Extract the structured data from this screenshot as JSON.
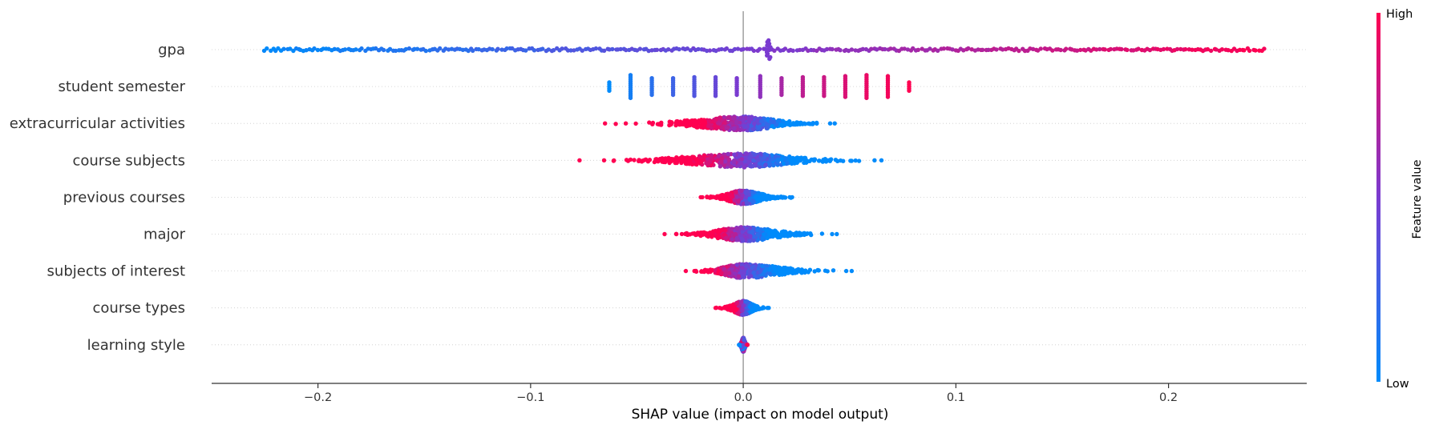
{
  "chart_data": {
    "type": "scatter",
    "subtype": "shap-beeswarm-summary",
    "features": [
      "gpa",
      "student semester",
      "extracurricular activities",
      "course subjects",
      "previous courses",
      "major",
      "subjects of interest",
      "course types",
      "learning style"
    ],
    "xlim": [
      -0.25,
      0.265
    ],
    "xticks": [
      -0.2,
      -0.1,
      0.0,
      0.1,
      0.2
    ],
    "xtick_labels": [
      "−0.2",
      "−0.1",
      "0.0",
      "0.1",
      "0.2"
    ],
    "xlabel": "SHAP value (impact on model output)",
    "colorbar": {
      "label": "Feature value",
      "high_label": "High",
      "low_label": "Low",
      "low_color": "#008bfb",
      "high_color": "#ff0051"
    },
    "zero_line_color": "#999999",
    "series": [
      {
        "feature": "gpa",
        "x_range": [
          -0.225,
          0.245
        ],
        "correlation": "positive",
        "spread": "uniform",
        "groups": [
          {
            "x": 0.012,
            "count": 12,
            "color_value": 0.5
          }
        ]
      },
      {
        "feature": "student semester",
        "x_range": [
          -0.063,
          0.078
        ],
        "correlation": "positive",
        "spread": "discrete",
        "groups": [
          {
            "x": -0.063,
            "count": 5,
            "color_value": 0.0
          },
          {
            "x": -0.053,
            "count": 12,
            "color_value": 0.08
          },
          {
            "x": -0.043,
            "count": 9,
            "color_value": 0.17
          },
          {
            "x": -0.033,
            "count": 9,
            "color_value": 0.25
          },
          {
            "x": -0.023,
            "count": 10,
            "color_value": 0.33
          },
          {
            "x": -0.013,
            "count": 10,
            "color_value": 0.42
          },
          {
            "x": -0.003,
            "count": 9,
            "color_value": 0.5
          },
          {
            "x": 0.008,
            "count": 11,
            "color_value": 0.58
          },
          {
            "x": 0.018,
            "count": 9,
            "color_value": 0.67
          },
          {
            "x": 0.028,
            "count": 10,
            "color_value": 0.75
          },
          {
            "x": 0.038,
            "count": 10,
            "color_value": 0.8
          },
          {
            "x": 0.048,
            "count": 11,
            "color_value": 0.86
          },
          {
            "x": 0.058,
            "count": 12,
            "color_value": 0.92
          },
          {
            "x": 0.068,
            "count": 11,
            "color_value": 0.96
          },
          {
            "x": 0.078,
            "count": 5,
            "color_value": 1.0
          }
        ]
      },
      {
        "feature": "extracurricular activities",
        "x_range": [
          -0.065,
          0.043
        ],
        "correlation": "negative",
        "spread": "dense"
      },
      {
        "feature": "course subjects",
        "x_range": [
          -0.077,
          0.065
        ],
        "correlation": "negative",
        "spread": "dense"
      },
      {
        "feature": "previous courses",
        "x_range": [
          -0.02,
          0.023
        ],
        "correlation": "negative",
        "spread": "dense"
      },
      {
        "feature": "major",
        "x_range": [
          -0.037,
          0.044
        ],
        "correlation": "negative",
        "spread": "dense"
      },
      {
        "feature": "subjects of interest",
        "x_range": [
          -0.027,
          0.051
        ],
        "correlation": "negative",
        "spread": "dense"
      },
      {
        "feature": "course types",
        "x_range": [
          -0.013,
          0.012
        ],
        "correlation": "negative",
        "spread": "dense"
      },
      {
        "feature": "learning style",
        "x_range": [
          -0.002,
          0.002
        ],
        "correlation": "mixed",
        "spread": "dense"
      }
    ]
  }
}
